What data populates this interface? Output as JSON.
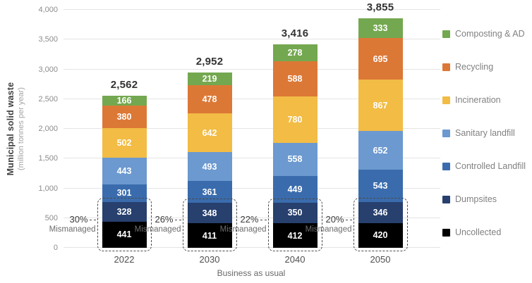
{
  "chart_data": {
    "type": "bar",
    "stacked": true,
    "title": "",
    "ylabel": "Municipal solid waste",
    "ylabel_sub": "(million tonnes per year)",
    "xlabel": "Business as usual",
    "ylim": [
      0,
      4000
    ],
    "yticks": [
      "0",
      "500",
      "1,000",
      "1,500",
      "2,000",
      "2,500",
      "3,000",
      "3,500",
      "4,000"
    ],
    "grid": "horizontal",
    "legend_position": "right",
    "categories": [
      "2022",
      "2030",
      "2040",
      "2050"
    ],
    "totals": [
      "2,562",
      "2,952",
      "3,416",
      "3,855"
    ],
    "series": [
      {
        "name": "Uncollected",
        "color": "#000000",
        "values": [
          441,
          411,
          412,
          420
        ]
      },
      {
        "name": "Dumpsites",
        "color": "#27406e",
        "values": [
          328,
          348,
          350,
          346
        ]
      },
      {
        "name": "Controlled Landfill",
        "color": "#3a6cad",
        "values": [
          301,
          361,
          449,
          543
        ]
      },
      {
        "name": "Sanitary landfill",
        "color": "#6c99cf",
        "values": [
          443,
          493,
          558,
          652
        ]
      },
      {
        "name": "Incineration",
        "color": "#f2bc45",
        "values": [
          502,
          642,
          780,
          867
        ]
      },
      {
        "name": "Recycling",
        "color": "#dc7836",
        "values": [
          380,
          478,
          588,
          695
        ]
      },
      {
        "name": "Composting & AD",
        "color": "#74a850",
        "values": [
          166,
          219,
          278,
          333
        ]
      }
    ],
    "mismanaged": {
      "label": "Mismanaged",
      "pcts": [
        "30%",
        "26%",
        "22%",
        "20%"
      ],
      "series_count": 2
    }
  }
}
